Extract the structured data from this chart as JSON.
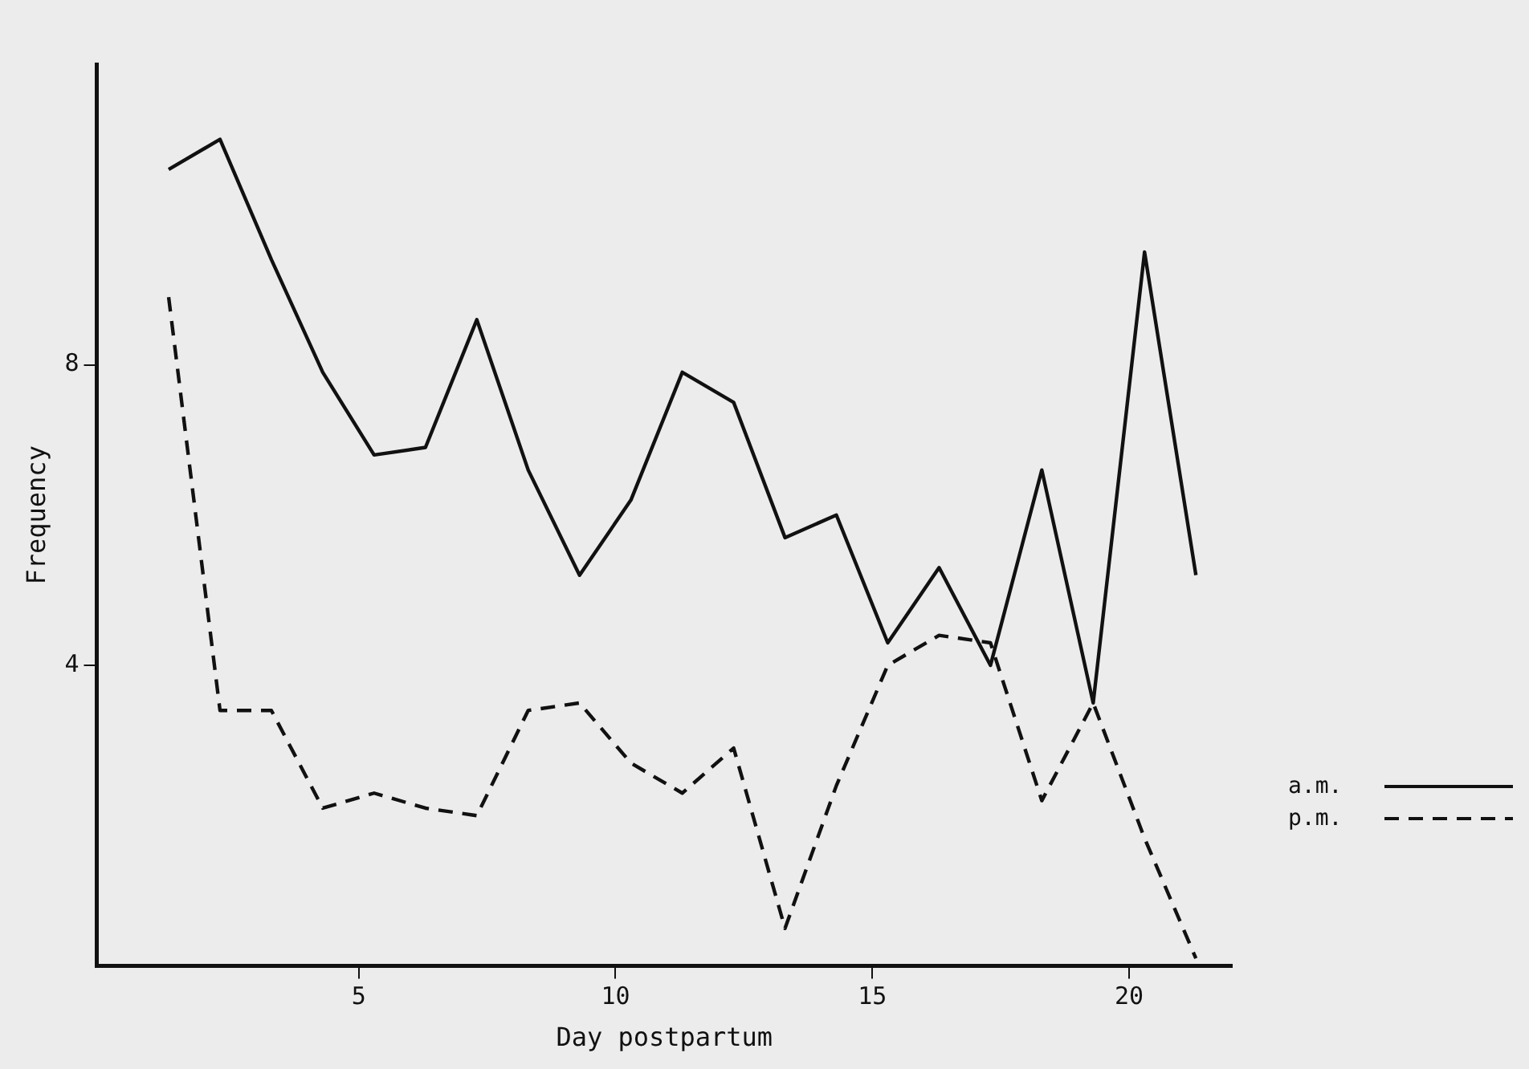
{
  "chart_data": {
    "type": "line",
    "xlabel": "Day postpartum",
    "ylabel": "Frequency",
    "x": [
      1.3,
      2.3,
      3.3,
      4.3,
      5.3,
      6.3,
      7.3,
      8.3,
      9.3,
      10.3,
      11.3,
      12.3,
      13.3,
      14.3,
      15.3,
      16.3,
      17.3,
      18.3,
      19.3,
      20.3,
      21.3
    ],
    "series": [
      {
        "name": "a.m.",
        "color": "#111111",
        "line_style": "solid",
        "values": [
          10.6,
          11.0,
          9.4,
          7.9,
          6.8,
          6.9,
          8.6,
          6.6,
          5.2,
          6.2,
          7.9,
          7.5,
          5.7,
          6.0,
          4.3,
          5.3,
          4.0,
          6.6,
          3.5,
          9.5,
          5.2
        ]
      },
      {
        "name": "p.m.",
        "color": "#111111",
        "line_style": "dashed",
        "values": [
          8.9,
          3.4,
          3.4,
          2.1,
          2.3,
          2.1,
          2.0,
          3.4,
          3.5,
          2.7,
          2.3,
          2.9,
          0.5,
          2.4,
          4.0,
          4.4,
          4.3,
          2.2,
          3.5,
          1.7,
          0.1
        ]
      }
    ],
    "xlim": [
      -0.1,
      22
    ],
    "xticks": [
      5,
      10,
      15,
      20
    ],
    "ylim": [
      0,
      12
    ],
    "yticks": [
      4,
      8
    ],
    "grid": false,
    "legend": "right",
    "marker": "none"
  }
}
